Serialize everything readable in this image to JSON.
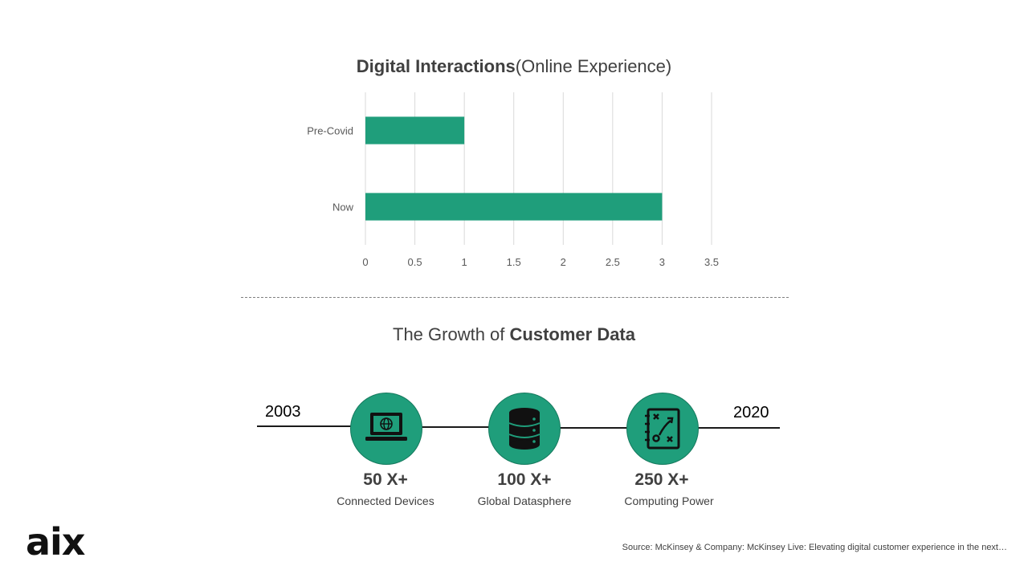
{
  "chart_data": {
    "type": "bar",
    "orientation": "horizontal",
    "title_bold": "Digital Interactions",
    "title_rest": "(Online Experience)",
    "categories": [
      "Pre-Covid",
      "Now"
    ],
    "values": [
      1,
      3
    ],
    "xlim": [
      0,
      3.5
    ],
    "x_ticks": [
      "0",
      "0.5",
      "1",
      "1.5",
      "2",
      "2.5",
      "3",
      "3.5"
    ],
    "grid": true,
    "bar_color": "#1f9e7b"
  },
  "growth": {
    "title_prefix": "The Growth of ",
    "title_bold": "Customer Data",
    "start_year": "2003",
    "end_year": "2020",
    "stats": [
      {
        "value": "50 X+",
        "label": "Connected Devices",
        "icon": "laptop-globe-icon"
      },
      {
        "value": "100 X+",
        "label": "Global Datasphere",
        "icon": "database-icon"
      },
      {
        "value": "250 X+",
        "label": "Computing Power",
        "icon": "strategy-board-icon"
      }
    ]
  },
  "logo": "aix",
  "source": "Source:  McKinsey & Company: McKinsey Live: Elevating digital customer experience  in the next…",
  "colors": {
    "accent": "#1f9e7b",
    "text": "#404040"
  }
}
